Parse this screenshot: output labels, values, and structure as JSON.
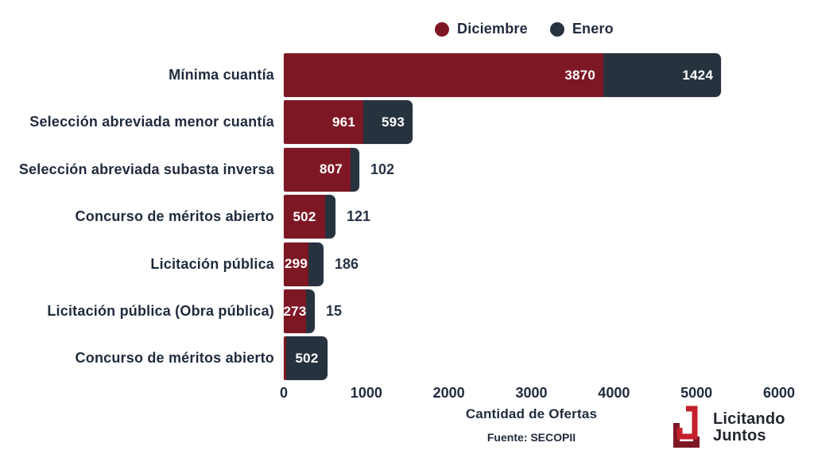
{
  "legend": {
    "items": [
      {
        "label": "Diciembre",
        "color": "#7e1724"
      },
      {
        "label": "Enero",
        "color": "#27323f"
      }
    ]
  },
  "chart_data": {
    "type": "bar",
    "orientation": "horizontal",
    "stacked": true,
    "title": "",
    "xlabel": "Cantidad de Ofertas",
    "ylabel": "",
    "xlim": [
      0,
      6000
    ],
    "x_ticks": [
      0,
      1000,
      2000,
      3000,
      4000,
      5000,
      6000
    ],
    "grid": false,
    "legend_position": "top",
    "series_names": [
      "Diciembre",
      "Enero"
    ],
    "rows": [
      {
        "category": "Mínima cuantía",
        "segments": [
          {
            "series": "Diciembre",
            "value": 3870,
            "label": "3870",
            "label_inside": true
          },
          {
            "series": "Enero",
            "value": 1424,
            "label": "1424",
            "label_inside": true
          }
        ]
      },
      {
        "category": "Selección abreviada menor cuantía",
        "segments": [
          {
            "series": "Diciembre",
            "value": 961,
            "label": "961",
            "label_inside": true
          },
          {
            "series": "Enero",
            "value": 593,
            "label": "593",
            "label_inside": true
          }
        ]
      },
      {
        "category": "Selección abreviada subasta inversa",
        "segments": [
          {
            "series": "Diciembre",
            "value": 807,
            "label": "807",
            "label_inside": true
          },
          {
            "series": "Enero",
            "value": 102,
            "label": "102",
            "label_inside": false
          }
        ]
      },
      {
        "category": "Concurso de méritos abierto",
        "segments": [
          {
            "series": "Diciembre",
            "value": 502,
            "label": "502",
            "label_inside": true
          },
          {
            "series": "Enero",
            "value": 121,
            "label": "121",
            "label_inside": false
          }
        ]
      },
      {
        "category": "Licitación pública",
        "segments": [
          {
            "series": "Diciembre",
            "value": 299,
            "label": "299",
            "label_inside": true
          },
          {
            "series": "Enero",
            "value": 186,
            "label": "186",
            "label_inside": false
          }
        ]
      },
      {
        "category": "Licitación pública (Obra pública)",
        "segments": [
          {
            "series": "Diciembre",
            "value": 273,
            "label": "273",
            "label_inside": true
          },
          {
            "series": "Enero",
            "value": 15,
            "label": "15",
            "label_inside": false
          }
        ]
      },
      {
        "category": "Concurso de méritos abierto",
        "segments": [
          {
            "series": "Diciembre",
            "value": null,
            "label": "",
            "label_inside": true
          },
          {
            "series": "Enero",
            "value": 502,
            "label": "502",
            "label_inside": true
          }
        ]
      }
    ]
  },
  "axis": {
    "xlabel": "Cantidad de Ofertas"
  },
  "footer": {
    "source": "Fuente: SECOPII",
    "logo": {
      "line1": "Licitando",
      "line2": "Juntos",
      "red": "#c4202c",
      "maroon": "#7e1724"
    }
  },
  "colors": {
    "diciembre": "#7e1724",
    "enero": "#27323f",
    "text": "#1f2b3d",
    "value_outside": "#273345",
    "background": "#ffffff"
  }
}
